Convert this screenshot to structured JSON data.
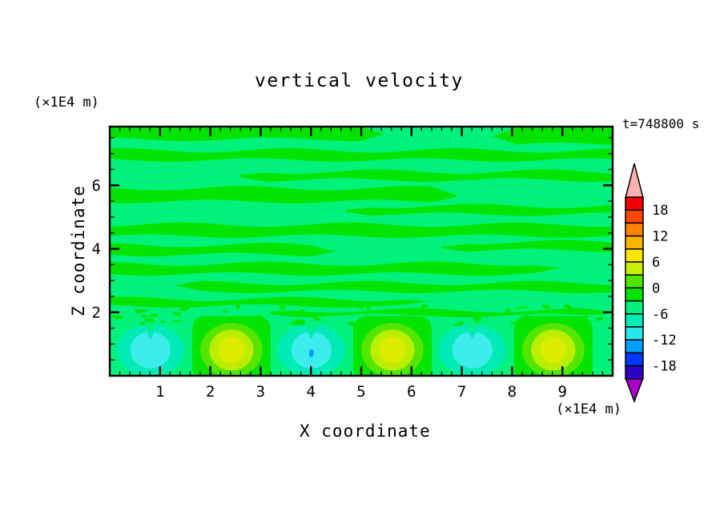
{
  "title": "vertical velocity",
  "annotations": {
    "time": "t=748800 s",
    "y_axis_units": "(×1E4 m)",
    "x_axis_units": "(×1E4 m)"
  },
  "axes": {
    "x_label": "X coordinate",
    "y_label": "Z coordinate",
    "x_range": [
      0,
      10
    ],
    "y_range": [
      0,
      7.85
    ],
    "x_major_ticks": [
      1,
      2,
      3,
      4,
      5,
      6,
      7,
      8,
      9
    ],
    "y_major_ticks": [
      2,
      4,
      6
    ],
    "x_minor_step": 0.2,
    "y_minor_step": 0.5
  },
  "colorbar": {
    "contour_interval": 3,
    "labels": [
      18,
      12,
      6,
      0,
      -6,
      -12,
      -18
    ],
    "box_values_top_to_bottom": [
      "18..21",
      "15..18",
      "12..15",
      "9..12",
      "6..9",
      "3..6",
      "0..3",
      "-3..0",
      "-6..-3",
      "-9..-6",
      "-12..-9",
      "-15..-12",
      "-18..-15",
      "-21..-18"
    ],
    "box_colors_top_to_bottom": [
      "#F00000",
      "#FF4600",
      "#FF8200",
      "#FFB400",
      "#FFE600",
      "#C8F000",
      "#50E600",
      "#00E400",
      "#00F27B",
      "#00EBB6",
      "#27E8E8",
      "#009EFF",
      "#0038FF",
      "#2A00C8"
    ],
    "over_arrow_color": "#FFB0B0",
    "under_arrow_color": "#AA00C8"
  },
  "chart_data": {
    "type": "filled_contour",
    "title": "vertical velocity",
    "time": "t=748800 s",
    "xlabel": "X coordinate",
    "ylabel": "Z coordinate",
    "axis_units": "×1E4 m",
    "x_range": [
      0,
      10
    ],
    "y_range": [
      0,
      7.85
    ],
    "contour_interval": 3,
    "labeled_levels": [
      18,
      12,
      6,
      0,
      -6,
      -12,
      -18
    ],
    "description": "Near-zero wavy horizontal bands aloft; a row of alternating updraft (yellow core) and downdraft (cyan core) cells near the surface at z≈0.8, spaced ≈1.6 units apart, with a noisy speckle layer near z≈2.",
    "background_color": "#00F27B",
    "band_color": "#00E400",
    "bands": [
      {
        "z": 7.66,
        "th": 0.42,
        "u0": 0.0,
        "u1": 5.5,
        "ph": 0.5
      },
      {
        "z": 7.6,
        "th": 0.62,
        "u0": 7.6,
        "u1": 10.0,
        "ph": 2.2
      },
      {
        "z": 6.95,
        "th": 0.3,
        "u0": 0.0,
        "u1": 10.0,
        "ph": 1.1
      },
      {
        "z": 6.3,
        "th": 0.26,
        "u0": 2.6,
        "u1": 10.0,
        "ph": 4.0
      },
      {
        "z": 5.7,
        "th": 0.42,
        "u0": 0.0,
        "u1": 6.9,
        "ph": 2.8
      },
      {
        "z": 5.22,
        "th": 0.26,
        "u0": 4.7,
        "u1": 10.0,
        "ph": 0.3
      },
      {
        "z": 4.58,
        "th": 0.36,
        "u0": 0.0,
        "u1": 10.0,
        "ph": 5.1
      },
      {
        "z": 3.97,
        "th": 0.3,
        "u0": 0.0,
        "u1": 4.5,
        "ph": 1.9
      },
      {
        "z": 4.08,
        "th": 0.26,
        "u0": 6.6,
        "u1": 10.0,
        "ph": 3.3
      },
      {
        "z": 3.37,
        "th": 0.32,
        "u0": 0.0,
        "u1": 9.0,
        "ph": 2.0
      },
      {
        "z": 2.79,
        "th": 0.26,
        "u0": 1.3,
        "u1": 10.0,
        "ph": 4.4
      },
      {
        "z": 2.31,
        "th": 0.22,
        "u0": 0.0,
        "u1": 6.4,
        "ph": 1.0
      },
      {
        "z": 1.98,
        "th": 0.16,
        "u0": 3.2,
        "u1": 9.9,
        "ph": 2.6
      }
    ],
    "updrafts": {
      "x": [
        2.42,
        5.62,
        8.82
      ],
      "z_center": 0.81,
      "column_halfwidth": 0.78,
      "column_top": 1.88,
      "rings": [
        {
          "ru": 0.62,
          "rz": 0.85,
          "color": "#55E600"
        },
        {
          "ru": 0.44,
          "rz": 0.64,
          "color": "#BBEE00"
        },
        {
          "ru": 0.26,
          "rz": 0.42,
          "color": "#DCEC00"
        }
      ]
    },
    "downdrafts": {
      "x": [
        0.81,
        4.01,
        7.21
      ],
      "z_center": 0.81,
      "rings": [
        {
          "ru": 0.67,
          "rz": 0.82,
          "color": "#00EBB6"
        },
        {
          "ru": 0.4,
          "rz": 0.58,
          "color": "#3DEDED"
        }
      ],
      "dot": {
        "x": 4.01,
        "z": 0.71,
        "color": "#009EFF"
      }
    },
    "speckle_band": {
      "z_min": 1.58,
      "z_max": 2.2,
      "count": 58,
      "seed": 11,
      "color": "#00E400",
      "alt_color": "#00EBB6"
    }
  }
}
